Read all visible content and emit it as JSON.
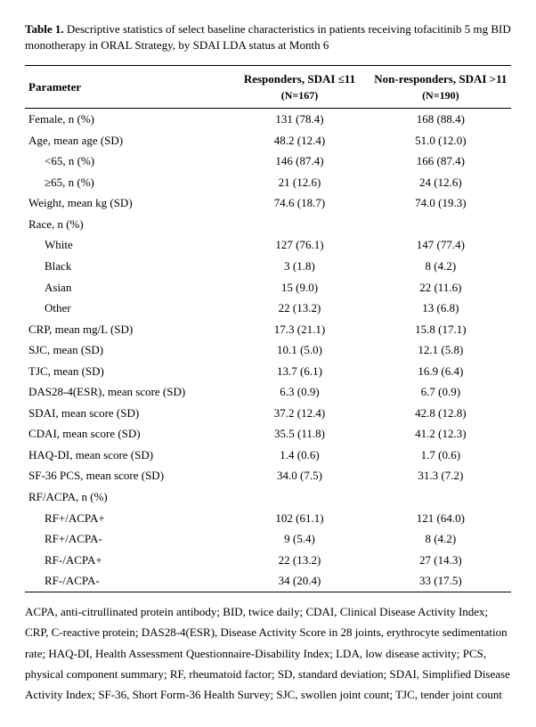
{
  "title": {
    "label": "Table 1.",
    "text": "Descriptive statistics of select baseline characteristics in patients receiving tofacitinib 5 mg BID monotherapy in ORAL Strategy, by SDAI LDA status at Month 6"
  },
  "table": {
    "columns": [
      {
        "label": "Parameter"
      },
      {
        "label_line1": "Responders, SDAI ≤11",
        "label_line2": "(N=167)"
      },
      {
        "label_line1": "Non-responders, SDAI >11",
        "label_line2": "(N=190)"
      }
    ],
    "rows": [
      {
        "param": "Female, n (%)",
        "indent": false,
        "c1": "131 (78.4)",
        "c2": "168 (88.4)"
      },
      {
        "param": "Age, mean age (SD)",
        "indent": false,
        "c1": "48.2 (12.4)",
        "c2": "51.0 (12.0)"
      },
      {
        "param": "<65, n (%)",
        "indent": true,
        "c1": "146 (87.4)",
        "c2": "166 (87.4)"
      },
      {
        "param": "≥65, n (%)",
        "indent": true,
        "c1": "21 (12.6)",
        "c2": "24 (12.6)"
      },
      {
        "param": "Weight, mean kg (SD)",
        "indent": false,
        "c1": "74.6 (18.7)",
        "c2": "74.0 (19.3)"
      },
      {
        "param": "Race, n (%)",
        "indent": false,
        "c1": "",
        "c2": ""
      },
      {
        "param": "White",
        "indent": true,
        "c1": "127 (76.1)",
        "c2": "147 (77.4)"
      },
      {
        "param": "Black",
        "indent": true,
        "c1": "3 (1.8)",
        "c2": "8 (4.2)"
      },
      {
        "param": "Asian",
        "indent": true,
        "c1": "15 (9.0)",
        "c2": "22 (11.6)"
      },
      {
        "param": "Other",
        "indent": true,
        "c1": "22 (13.2)",
        "c2": "13 (6.8)"
      },
      {
        "param": "CRP, mean mg/L (SD)",
        "indent": false,
        "c1": "17.3 (21.1)",
        "c2": "15.8 (17.1)"
      },
      {
        "param": "SJC, mean (SD)",
        "indent": false,
        "c1": "10.1 (5.0)",
        "c2": "12.1 (5.8)"
      },
      {
        "param": "TJC, mean (SD)",
        "indent": false,
        "c1": "13.7 (6.1)",
        "c2": "16.9 (6.4)"
      },
      {
        "param": "DAS28-4(ESR), mean score (SD)",
        "indent": false,
        "c1": "6.3 (0.9)",
        "c2": "6.7 (0.9)"
      },
      {
        "param": "SDAI, mean score (SD)",
        "indent": false,
        "c1": "37.2 (12.4)",
        "c2": "42.8 (12.8)"
      },
      {
        "param": "CDAI, mean score (SD)",
        "indent": false,
        "c1": "35.5 (11.8)",
        "c2": "41.2 (12.3)"
      },
      {
        "param": "HAQ-DI, mean score (SD)",
        "indent": false,
        "c1": "1.4 (0.6)",
        "c2": "1.7 (0.6)"
      },
      {
        "param": "SF-36 PCS, mean score (SD)",
        "indent": false,
        "c1": "34.0 (7.5)",
        "c2": "31.3 (7.2)"
      },
      {
        "param": "RF/ACPA, n (%)",
        "indent": false,
        "c1": "",
        "c2": ""
      },
      {
        "param": "RF+/ACPA+",
        "indent": true,
        "c1": "102 (61.1)",
        "c2": "121 (64.0)"
      },
      {
        "param": "RF+/ACPA-",
        "indent": true,
        "c1": "9 (5.4)",
        "c2": "8 (4.2)"
      },
      {
        "param": "RF-/ACPA+",
        "indent": true,
        "c1": "22 (13.2)",
        "c2": "27 (14.3)"
      },
      {
        "param": "RF-/ACPA-",
        "indent": true,
        "c1": "34 (20.4)",
        "c2": "33 (17.5)"
      }
    ]
  },
  "footnote": "ACPA, anti-citrullinated protein antibody; BID, twice daily; CDAI, Clinical Disease Activity Index; CRP, C-reactive protein; DAS28-4(ESR), Disease Activity Score in 28 joints, erythrocyte sedimentation rate; HAQ-DI, Health Assessment Questionnaire-Disability Index; LDA, low disease activity; PCS, physical component summary; RF, rheumatoid factor; SD, standard deviation; SDAI, Simplified Disease Activity Index; SF-36, Short Form-36 Health Survey; SJC, swollen joint count; TJC, tender joint count"
}
